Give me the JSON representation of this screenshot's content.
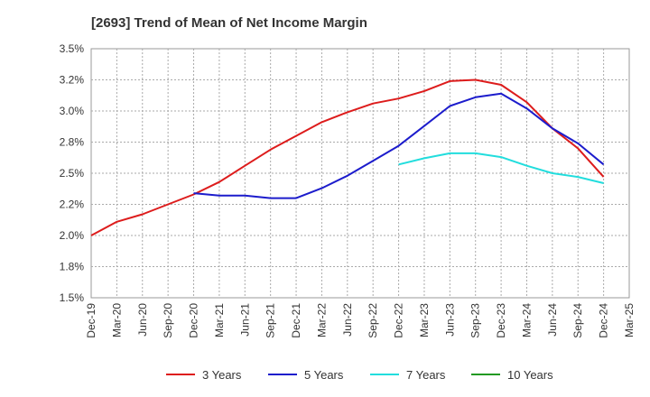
{
  "chart_data": {
    "type": "line",
    "title": "[2693]  Trend of Mean of Net Income Margin",
    "xlabel": "",
    "ylabel": "",
    "x_ticks": [
      "Dec-19",
      "Mar-20",
      "Jun-20",
      "Sep-20",
      "Dec-20",
      "Mar-21",
      "Jun-21",
      "Sep-21",
      "Dec-21",
      "Mar-22",
      "Jun-22",
      "Sep-22",
      "Dec-22",
      "Mar-23",
      "Jun-23",
      "Sep-23",
      "Dec-23",
      "Mar-24",
      "Jun-24",
      "Sep-24",
      "Dec-24",
      "Mar-25"
    ],
    "y_ticks": [
      "1.5%",
      "1.8%",
      "2.0%",
      "2.2%",
      "2.5%",
      "2.8%",
      "3.0%",
      "3.2%",
      "3.5%"
    ],
    "ylim": [
      1.5,
      3.5
    ],
    "grid": true,
    "legend_position": "bottom",
    "series": [
      {
        "name": "3 Years",
        "color": "#dd1c1c",
        "x": [
          "Dec-19",
          "Mar-20",
          "Jun-20",
          "Sep-20",
          "Dec-20",
          "Mar-21",
          "Jun-21",
          "Sep-21",
          "Dec-21",
          "Mar-22",
          "Jun-22",
          "Sep-22",
          "Dec-22",
          "Mar-23",
          "Jun-23",
          "Sep-23",
          "Dec-23",
          "Mar-24",
          "Jun-24",
          "Sep-24",
          "Dec-24"
        ],
        "values": [
          2.0,
          2.11,
          2.17,
          2.25,
          2.33,
          2.43,
          2.56,
          2.69,
          2.8,
          2.91,
          2.99,
          3.06,
          3.1,
          3.16,
          3.24,
          3.25,
          3.21,
          3.07,
          2.86,
          2.7,
          2.47
        ]
      },
      {
        "name": "5 Years",
        "color": "#1c1ccc",
        "x": [
          "Dec-20",
          "Mar-21",
          "Jun-21",
          "Sep-21",
          "Dec-21",
          "Mar-22",
          "Jun-22",
          "Sep-22",
          "Dec-22",
          "Mar-23",
          "Jun-23",
          "Sep-23",
          "Dec-23",
          "Mar-24",
          "Jun-24",
          "Sep-24",
          "Dec-24"
        ],
        "values": [
          2.34,
          2.32,
          2.32,
          2.3,
          2.3,
          2.38,
          2.48,
          2.6,
          2.72,
          2.88,
          3.04,
          3.11,
          3.14,
          3.02,
          2.86,
          2.74,
          2.57
        ]
      },
      {
        "name": "7 Years",
        "color": "#22dddd",
        "x": [
          "Dec-22",
          "Mar-23",
          "Jun-23",
          "Sep-23",
          "Dec-23",
          "Mar-24",
          "Jun-24",
          "Sep-24",
          "Dec-24"
        ],
        "values": [
          2.57,
          2.62,
          2.66,
          2.66,
          2.63,
          2.56,
          2.5,
          2.47,
          2.42
        ]
      },
      {
        "name": "10 Years",
        "color": "#229922",
        "x": [],
        "values": []
      }
    ]
  }
}
